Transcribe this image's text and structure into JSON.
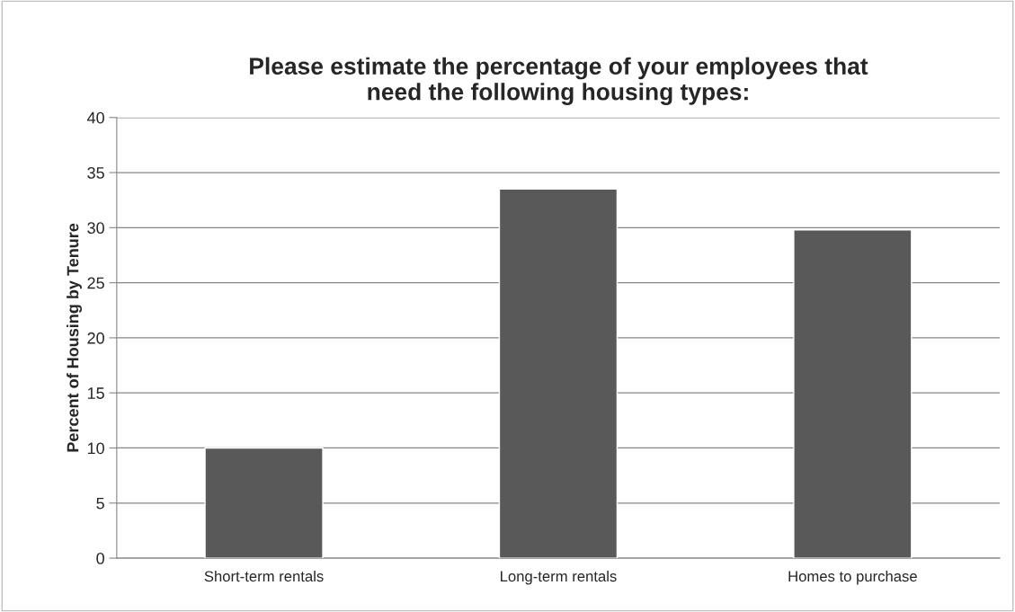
{
  "chart_data": {
    "type": "bar",
    "title": "Please estimate the percentage of your employees that\nneed the following housing types:",
    "ylabel": "Percent of Housing by Tenure",
    "categories": [
      "Short-term rentals",
      "Long-term rentals",
      "Homes to purchase"
    ],
    "values": [
      10,
      33.5,
      29.8
    ],
    "color": "#595959",
    "ylim": [
      0,
      40
    ],
    "yticks": [
      0,
      5,
      10,
      15,
      20,
      25,
      30,
      35,
      40
    ],
    "grid": "y"
  }
}
